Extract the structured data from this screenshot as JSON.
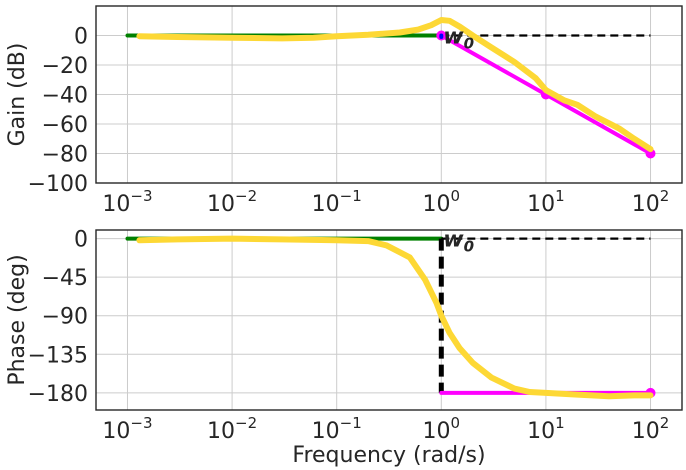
{
  "chart_data": [
    {
      "type": "line",
      "xscale": "log",
      "xlim": [
        0.0005,
        200
      ],
      "ylim": [
        -100,
        20
      ],
      "xlabel": "",
      "ylabel": "Gain (dB)",
      "xticks": [
        0.001,
        0.01,
        0.1,
        1,
        10,
        100
      ],
      "xtick_labels": [
        {
          "base": "10",
          "exp": "−3"
        },
        {
          "base": "10",
          "exp": "−2"
        },
        {
          "base": "10",
          "exp": "−1"
        },
        {
          "base": "10",
          "exp": "0"
        },
        {
          "base": "10",
          "exp": "1"
        },
        {
          "base": "10",
          "exp": "2"
        }
      ],
      "yticks": [
        0,
        -20,
        -40,
        -60,
        -80,
        -100
      ],
      "ytick_labels": [
        "0",
        "−20",
        "−40",
        "−60",
        "−80",
        "−100"
      ],
      "grid": true,
      "annotation": {
        "text": "w",
        "sub": "0",
        "x": 1,
        "y": 0
      },
      "series": [
        {
          "color": "#008000",
          "style": "solid",
          "x": [
            0.001,
            1
          ],
          "y": [
            0,
            0
          ]
        },
        {
          "color": "#000000",
          "style": "dashed",
          "x": [
            1,
            100
          ],
          "y": [
            0,
            0
          ]
        },
        {
          "color": "#ff00ff",
          "style": "solid",
          "x": [
            1,
            10,
            100
          ],
          "y": [
            0,
            -40,
            -80
          ],
          "markers": true
        },
        {
          "color": "#0000ff",
          "style": "solid",
          "x": [
            1,
            1
          ],
          "y": [
            0,
            -1
          ]
        },
        {
          "color": "#fdd835",
          "style": "solid",
          "x": [
            0.0013,
            0.003,
            0.01,
            0.03,
            0.06,
            0.1,
            0.2,
            0.4,
            0.6,
            0.8,
            1,
            1.2,
            1.5,
            2,
            3,
            5,
            8,
            10,
            15,
            20,
            30,
            50,
            70,
            100
          ],
          "y": [
            -0.5,
            -1,
            -1.5,
            -2,
            -1.5,
            -0.5,
            0.5,
            2,
            4,
            7,
            10.5,
            10,
            6,
            0,
            -8,
            -18,
            -29,
            -37,
            -44,
            -47,
            -55,
            -63,
            -70,
            -77
          ]
        }
      ]
    },
    {
      "type": "line",
      "xscale": "log",
      "xlim": [
        0.0005,
        200
      ],
      "ylim": [
        -200,
        10
      ],
      "xlabel": "Frequency (rad/s)",
      "ylabel": "Phase (deg)",
      "xticks": [
        0.001,
        0.01,
        0.1,
        1,
        10,
        100
      ],
      "xtick_labels": [
        {
          "base": "10",
          "exp": "−3"
        },
        {
          "base": "10",
          "exp": "−2"
        },
        {
          "base": "10",
          "exp": "−1"
        },
        {
          "base": "10",
          "exp": "0"
        },
        {
          "base": "10",
          "exp": "1"
        },
        {
          "base": "10",
          "exp": "2"
        }
      ],
      "yticks": [
        0,
        -45,
        -90,
        -135,
        -180
      ],
      "ytick_labels": [
        "0",
        "−45",
        "−90",
        "−135",
        "−180"
      ],
      "grid": true,
      "annotation": {
        "text": "w",
        "sub": "0",
        "x": 1,
        "y": 0
      },
      "series": [
        {
          "color": "#008000",
          "style": "solid",
          "x": [
            0.001,
            1
          ],
          "y": [
            0,
            0
          ]
        },
        {
          "color": "#000000",
          "style": "dashed",
          "x": [
            1,
            100
          ],
          "y": [
            0,
            0
          ]
        },
        {
          "color": "#000000",
          "style": "dashed",
          "x": [
            1,
            1
          ],
          "y": [
            0,
            -180
          ]
        },
        {
          "color": "#ff00ff",
          "style": "solid",
          "x": [
            1,
            100
          ],
          "y": [
            -180,
            -180
          ],
          "markers": "end"
        },
        {
          "color": "#fdd835",
          "style": "solid",
          "x": [
            0.0013,
            0.003,
            0.01,
            0.03,
            0.1,
            0.2,
            0.3,
            0.5,
            0.7,
            0.9,
            1,
            1.2,
            1.5,
            2,
            3,
            5,
            7,
            10,
            20,
            40,
            70,
            100
          ],
          "y": [
            -2,
            -1,
            0,
            -1,
            -2,
            -3,
            -8,
            -22,
            -48,
            -75,
            -90,
            -110,
            -128,
            -145,
            -162,
            -175,
            -179,
            -180,
            -182,
            -184,
            -183,
            -183
          ]
        }
      ]
    }
  ]
}
